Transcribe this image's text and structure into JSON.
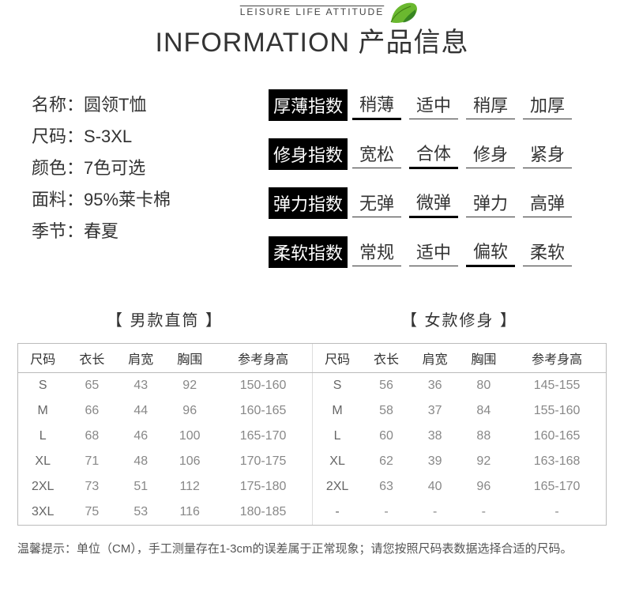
{
  "header": {
    "tagline": "LEISURE LIFE ATTITUDE",
    "title": "INFORMATION 产品信息",
    "leaf_color_light": "#8bc34a",
    "leaf_color_dark": "#228b22"
  },
  "specs": [
    {
      "label": "名称：",
      "value": "圆领T恤"
    },
    {
      "label": "尺码：",
      "value": "S-3XL"
    },
    {
      "label": "颜色：",
      "value": "7色可选"
    },
    {
      "label": "面料：",
      "value": "95%莱卡棉"
    },
    {
      "label": "季节：",
      "value": "春夏"
    }
  ],
  "indices": [
    {
      "label": "厚薄指数",
      "options": [
        "稍薄",
        "适中",
        "稍厚",
        "加厚"
      ],
      "selected": 0
    },
    {
      "label": "修身指数",
      "options": [
        "宽松",
        "合体",
        "修身",
        "紧身"
      ],
      "selected": 1
    },
    {
      "label": "弹力指数",
      "options": [
        "无弹",
        "微弹",
        "弹力",
        "高弹"
      ],
      "selected": 1
    },
    {
      "label": "柔软指数",
      "options": [
        "常规",
        "适中",
        "偏软",
        "柔软"
      ],
      "selected": 2
    }
  ],
  "tables": {
    "male": {
      "title": "【 男款直筒 】",
      "headers": [
        "尺码",
        "衣长",
        "肩宽",
        "胸围",
        "参考身高"
      ],
      "rows": [
        [
          "S",
          "65",
          "43",
          "92",
          "150-160"
        ],
        [
          "M",
          "66",
          "44",
          "96",
          "160-165"
        ],
        [
          "L",
          "68",
          "46",
          "100",
          "165-170"
        ],
        [
          "XL",
          "71",
          "48",
          "106",
          "170-175"
        ],
        [
          "2XL",
          "73",
          "51",
          "112",
          "175-180"
        ],
        [
          "3XL",
          "75",
          "53",
          "116",
          "180-185"
        ]
      ]
    },
    "female": {
      "title": "【 女款修身 】",
      "headers": [
        "尺码",
        "衣长",
        "肩宽",
        "胸围",
        "参考身高"
      ],
      "rows": [
        [
          "S",
          "56",
          "36",
          "80",
          "145-155"
        ],
        [
          "M",
          "58",
          "37",
          "84",
          "155-160"
        ],
        [
          "L",
          "60",
          "38",
          "88",
          "160-165"
        ],
        [
          "XL",
          "62",
          "39",
          "92",
          "163-168"
        ],
        [
          "2XL",
          "63",
          "40",
          "96",
          "165-170"
        ],
        [
          "-",
          "-",
          "-",
          "-",
          "-"
        ]
      ]
    }
  },
  "notice": "温馨提示：单位（CM），手工测量存在1-3cm的误差属于正常现象；请您按照尺码表数据选择合适的尺码。"
}
